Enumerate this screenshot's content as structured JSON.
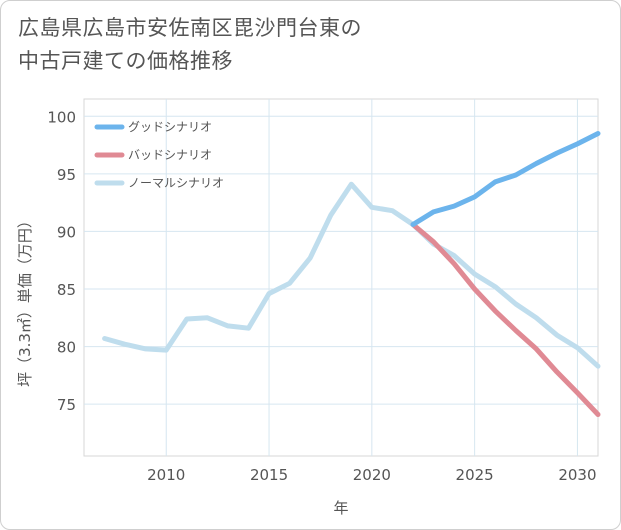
{
  "title_line1": "広島県広島市安佐南区毘沙門台東の",
  "title_line2": "中古戸建ての価格推移",
  "chart_data": {
    "type": "line",
    "xlabel": "年",
    "ylabel": "坪（3.3㎡）単価（万円）",
    "xlim": [
      2006,
      2031
    ],
    "ylim": [
      70.5,
      101.5
    ],
    "xticks": [
      2010,
      2015,
      2020,
      2025,
      2030
    ],
    "yticks": [
      75,
      80,
      85,
      90,
      95,
      100
    ],
    "grid": true,
    "legend_position": "top-left",
    "series": [
      {
        "name": "グッドシナリオ",
        "color": "#6cb4ec",
        "x": [
          2022,
          2023,
          2024,
          2025,
          2026,
          2027,
          2028,
          2029,
          2030,
          2031
        ],
        "y": [
          90.6,
          91.7,
          92.2,
          93.0,
          94.3,
          94.9,
          95.9,
          96.8,
          97.6,
          98.5
        ]
      },
      {
        "name": "バッドシナリオ",
        "color": "#e08a94",
        "x": [
          2022,
          2023,
          2024,
          2025,
          2026,
          2027,
          2028,
          2029,
          2030,
          2031
        ],
        "y": [
          90.6,
          89.1,
          87.2,
          85.0,
          83.1,
          81.4,
          79.8,
          77.8,
          76.0,
          74.1
        ]
      },
      {
        "name": "ノーマルシナリオ",
        "color": "#bfdded",
        "x": [
          2007,
          2008,
          2009,
          2010,
          2011,
          2012,
          2013,
          2014,
          2015,
          2016,
          2017,
          2018,
          2019,
          2020,
          2021,
          2022,
          2023,
          2024,
          2025,
          2026,
          2027,
          2028,
          2029,
          2030,
          2031
        ],
        "y": [
          80.7,
          80.2,
          79.8,
          79.7,
          82.4,
          82.5,
          81.8,
          81.6,
          84.6,
          85.5,
          87.7,
          91.4,
          94.1,
          92.1,
          91.8,
          90.6,
          88.9,
          87.9,
          86.3,
          85.2,
          83.7,
          82.5,
          81.0,
          79.9,
          78.3
        ]
      }
    ]
  }
}
